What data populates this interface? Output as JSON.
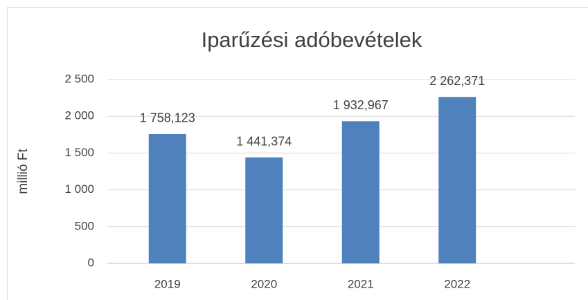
{
  "chart_data": {
    "type": "bar",
    "title": "Iparűzési adóbevételek",
    "y_label": "millió Ft",
    "categories": [
      "2019",
      "2020",
      "2021",
      "2022"
    ],
    "values": [
      1758.123,
      1441.374,
      1932.967,
      2262.371
    ],
    "value_labels": [
      "1 758,123",
      "1 441,374",
      "1 932,967",
      "2 262,371"
    ],
    "color": "#4f81bd",
    "ylim": [
      0,
      2500
    ],
    "yticks": [
      0,
      500,
      {
        "value": 1000,
        "label": "1 000"
      },
      {
        "value": 1500,
        "label": "1 500"
      },
      {
        "value": 2000,
        "label": "2 000"
      },
      {
        "value": 2500,
        "label": "2 500"
      }
    ],
    "grid": true
  }
}
